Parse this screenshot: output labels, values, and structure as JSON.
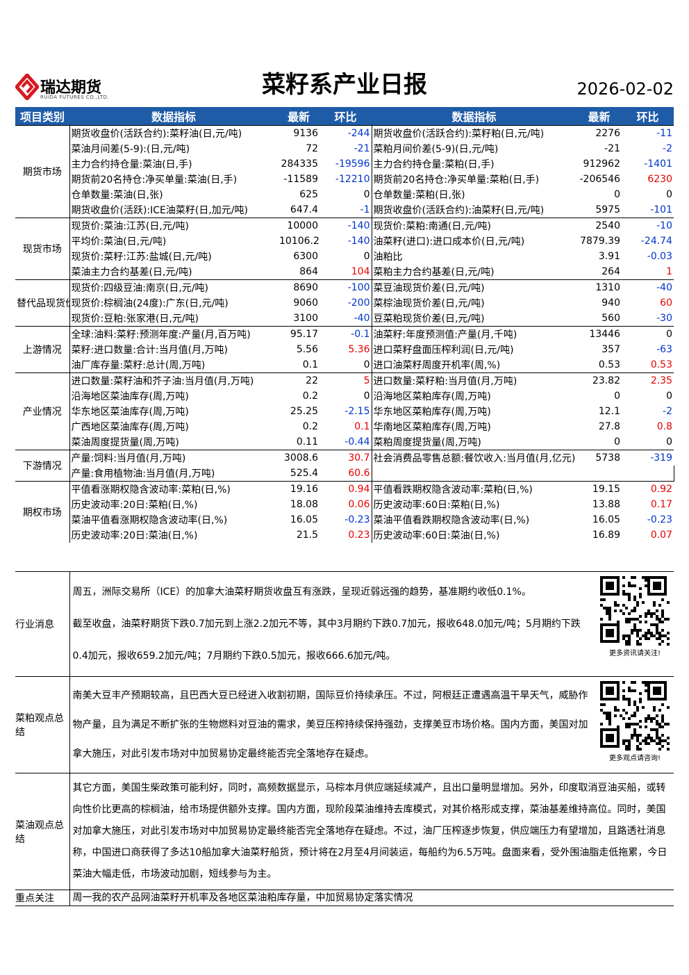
{
  "header": {
    "logo_text": "瑞达期货",
    "logo_subtext": "RUIDA FUTURES CO.,LTD.",
    "title": "菜籽系产业日报",
    "date": "2026-02-02"
  },
  "table": {
    "columns": [
      "项目类别",
      "数据指标",
      "最新",
      "环比",
      "数据指标",
      "最新",
      "环比"
    ],
    "sections": [
      {
        "category": "期货市场",
        "rows": [
          {
            "left": [
              "期货收盘价(活跃合约):菜籽油(日,元/吨)",
              9136,
              -244
            ],
            "right": [
              "期货收盘价(活跃合约):菜籽粕(日,元/吨)",
              2276,
              -11
            ]
          },
          {
            "left": [
              "菜油月间差(5-9):(日,元/吨)",
              72,
              -21
            ],
            "right": [
              "菜粕月间价差(5-9)(日,元/吨)",
              -21,
              -2
            ]
          },
          {
            "left": [
              "主力合约持仓量:菜油(日,手)",
              284335,
              -19596
            ],
            "right": [
              "主力合约持仓量:菜粕(日,手)",
              912962,
              -1401
            ]
          },
          {
            "left": [
              "期货前20名持仓:净买单量:菜油(日,手)",
              -11589,
              -12210
            ],
            "right": [
              "期货前20名持仓:净买单量:菜粕(日,手)",
              -206546,
              6230
            ]
          },
          {
            "left": [
              "仓单数量:菜油(日,张)",
              625,
              0
            ],
            "right": [
              "仓单数量:菜粕(日,张)",
              0,
              0
            ]
          },
          {
            "left": [
              "期货收盘价(活跃):ICE油菜籽(日,加元/吨)",
              647.4,
              -1
            ],
            "right": [
              "期货收盘价(活跃合约):油菜籽(日,元/吨)",
              5975,
              -101
            ]
          }
        ]
      },
      {
        "category": "现货市场",
        "rows": [
          {
            "left": [
              "现货价:菜油:江苏(日,元/吨)",
              10000,
              -140
            ],
            "right": [
              "现货价:菜粕:南通(日,元/吨)",
              2540,
              -10
            ]
          },
          {
            "left": [
              "平均价:菜油(日,元/吨)",
              10106.25,
              -140
            ],
            "right": [
              "油菜籽(进口):进口成本价(日,元/吨)",
              7879.39,
              -24.74
            ]
          },
          {
            "left": [
              "现货价:菜籽:江苏:盐城(日,元/吨)",
              6300,
              0
            ],
            "right": [
              "油粕比",
              3.91,
              -0.03
            ]
          },
          {
            "left": [
              "菜油主力合约基差(日,元/吨)",
              864,
              104
            ],
            "right": [
              "菜粕主力合约基差(日,元/吨)",
              264,
              1
            ]
          }
        ]
      },
      {
        "category": "替代品现货价格",
        "rows": [
          {
            "left": [
              "现货价:四级豆油:南京(日,元/吨)",
              8690,
              -100
            ],
            "right": [
              "菜豆油现货价差(日,元/吨)",
              1310,
              -40
            ]
          },
          {
            "left": [
              "现货价:棕榈油(24度):广东(日,元/吨)",
              9060,
              -200
            ],
            "right": [
              "菜棕油现货价差(日,元/吨)",
              940,
              60
            ]
          },
          {
            "left": [
              "现货价:豆粕:张家港(日,元/吨)",
              3100,
              -40
            ],
            "right": [
              "豆菜粕现货价差(日,元/吨)",
              560,
              -30
            ]
          }
        ]
      },
      {
        "category": "上游情况",
        "rows": [
          {
            "left": [
              "全球:油料:菜籽:预测年度:产量(月,百万吨)",
              95.17,
              -0.1
            ],
            "right": [
              "油菜籽:年度预测值:产量(月,千吨)",
              13446,
              0
            ]
          },
          {
            "left": [
              "菜籽:进口数量:合计:当月值(月,万吨)",
              5.56,
              5.36
            ],
            "right": [
              "进口菜籽盘面压榨利润(日,元/吨)",
              357,
              -63
            ]
          },
          {
            "left": [
              "油厂库存量:菜籽:总计(周,万吨)",
              0.1,
              0
            ],
            "right": [
              "进口油菜籽周度开机率(周,%)",
              0.53,
              0.53
            ]
          }
        ]
      },
      {
        "category": "产业情况",
        "rows": [
          {
            "left": [
              "进口数量:菜籽油和芥子油:当月值(月,万吨)",
              22,
              5
            ],
            "right": [
              "进口数量:菜籽粕:当月值(月,万吨)",
              23.82,
              2.35
            ]
          },
          {
            "left": [
              "沿海地区菜油库存(周,万吨)",
              0.2,
              0
            ],
            "right": [
              "沿海地区菜粕库存(周,万吨)",
              0,
              0
            ]
          },
          {
            "left": [
              "华东地区菜油库存(周,万吨)",
              25.25,
              -2.15
            ],
            "right": [
              "华东地区菜粕库存(周,万吨)",
              12.1,
              -2
            ]
          },
          {
            "left": [
              "广西地区菜油库存(周,万吨)",
              0.2,
              0.1
            ],
            "right": [
              "华南地区菜粕库存(周,万吨)",
              27.8,
              0.8
            ]
          },
          {
            "left": [
              "菜油周度提货量(周,万吨)",
              0.11,
              -0.44
            ],
            "right": [
              "菜粕周度提货量(周,万吨)",
              0,
              0
            ]
          }
        ]
      },
      {
        "category": "下游情况",
        "rows": [
          {
            "left": [
              "产量:饲料:当月值(月,万吨)",
              3008.6,
              30.7
            ],
            "right": [
              "社会消费品零售总额:餐饮收入:当月值(月,亿元)",
              5738,
              -319
            ]
          },
          {
            "left": [
              "产量:食用植物油:当月值(月,万吨)",
              525.4,
              60.6
            ]
          }
        ]
      },
      {
        "category": "期权市场",
        "rows": [
          {
            "left": [
              "平值看涨期权隐含波动率:菜粕(日,%)",
              19.16,
              0.94
            ],
            "right": [
              "平值看跌期权隐含波动率:菜粕(日,%)",
              19.15,
              0.92
            ]
          },
          {
            "left": [
              "历史波动率:20日:菜粕(日,%)",
              18.08,
              0.06
            ],
            "right": [
              "历史波动率:60日:菜粕(日,%)",
              13.88,
              0.17
            ]
          },
          {
            "left": [
              "菜油平值看涨期权隐含波动率(日,%)",
              16.05,
              -0.23
            ],
            "right": [
              "菜油平值看跌期权隐含波动率(日,%)",
              16.05,
              -0.23
            ]
          },
          {
            "left": [
              "历史波动率:20日:菜油(日,%)",
              21.5,
              0.23
            ],
            "right": [
              "历史波动率:60日:菜油(日,%)",
              16.89,
              0.07
            ]
          }
        ]
      }
    ]
  },
  "notes": [
    {
      "category": "行业消息",
      "qr_caption": "更多资讯请关注!",
      "paragraphs": [
        "周五，洲际交易所（ICE）的加拿大油菜籽期货收盘互有涨跌，呈现近弱远强的趋势，基准期约收低0.1%。",
        "截至收盘，油菜籽期货下跌0.7加元到上涨2.2加元不等，其中3月期约下跌0.7加元，报收648.0加元/吨；5月期约下跌0.4加元，报收659.2加元/吨；7月期约下跌0.5加元，报收666.6加元/吨。"
      ]
    },
    {
      "category": "菜粕观点总结",
      "qr_caption": "更多观点请咨询!",
      "paragraphs": [
        "南美大豆丰产预期较高，且巴西大豆已经进入收割初期，国际豆价持续承压。不过，阿根廷正遭遇高温干旱天气，威胁作物产量，且为满足不断扩张的生物燃料对豆油的需求，美豆压榨持续保持强劲，支撑美豆市场价格。国内方面，美国对加拿大施压，对此引发市场对中加贸易协定最终能否完全落地存在疑虑。"
      ]
    },
    {
      "category": "菜油观点总结",
      "paragraphs": [
        "其它方面，美国生柴政策可能利好，同时，高频数据显示，马棕本月供应端延续减产，且出口量明显增加。另外，印度取消豆油买船，或转向性价比更高的棕榈油，给市场提供额外支撑。国内方面，现阶段菜油维持去库模式，对其价格形成支撑，菜油基差维持高位。同时，美国对加拿大施压，对此引发市场对中加贸易协定最终能否完全落地存在疑虑。不过，油厂压榨逐步恢复，供应端压力有望增加，且路透社消息称，中国进口商获得了多达10船加拿大油菜籽船货，预计将在2月至4月间装运，每船约为6.5万吨。盘面来看，受外围油脂走低拖累，今日菜油大幅走低，市场波动加剧，短线参与为主。"
      ]
    },
    {
      "category": "重点关注",
      "paragraphs": [
        "周一我的农产品网油菜籽开机率及各地区菜油粕库存量，中加贸易协定落实情况"
      ]
    }
  ]
}
